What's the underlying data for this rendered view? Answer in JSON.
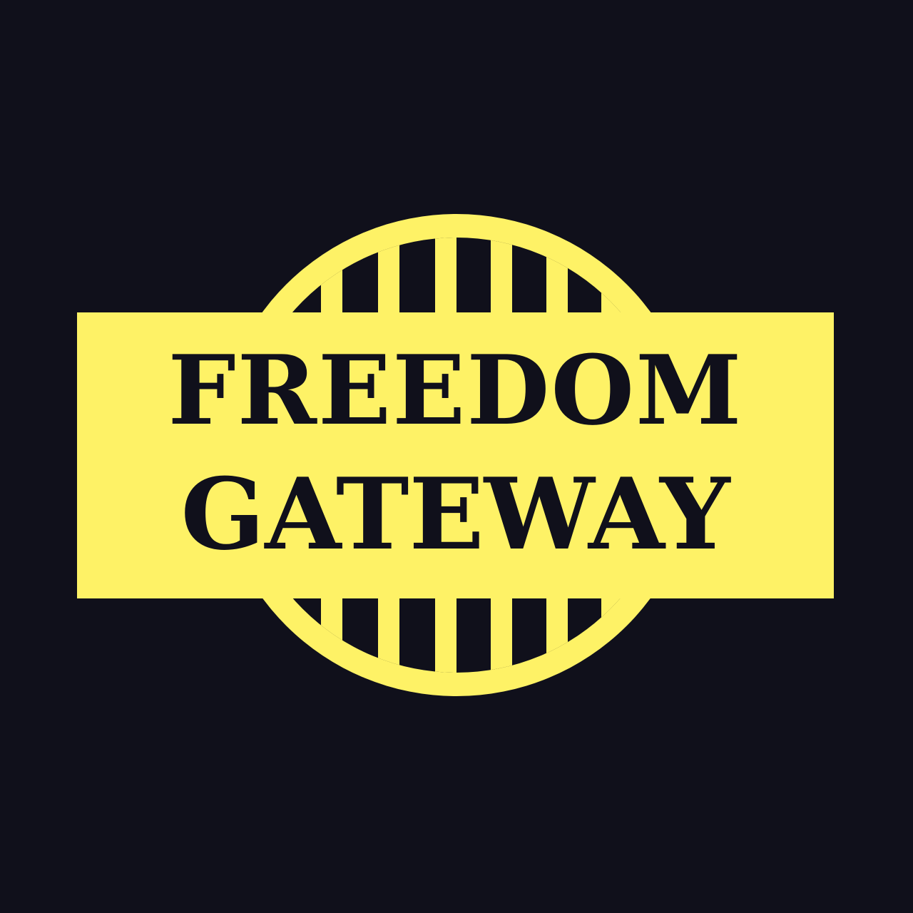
{
  "logo": {
    "line1": "FREEDOM",
    "line2": "GATEWAY",
    "colors": {
      "background": "#10101b",
      "accent": "#fef266",
      "text": "#10101b"
    },
    "icon": "gate-globe-icon"
  }
}
